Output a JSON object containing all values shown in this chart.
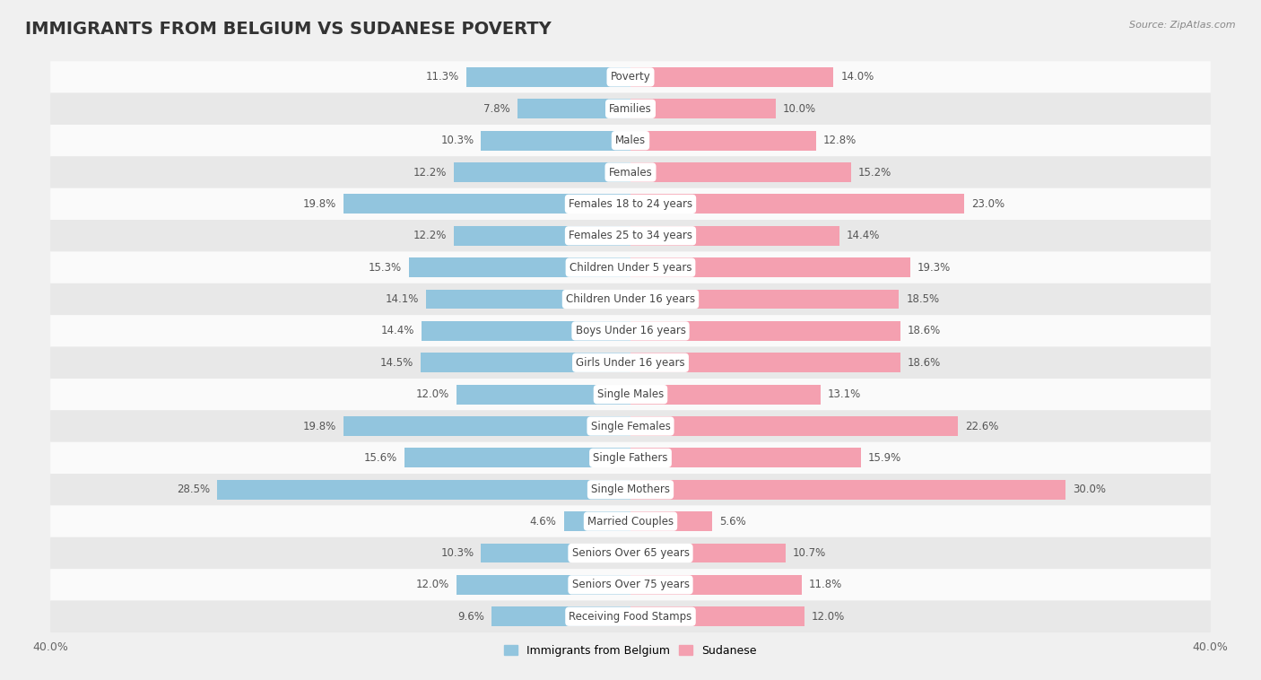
{
  "title": "IMMIGRANTS FROM BELGIUM VS SUDANESE POVERTY",
  "source": "Source: ZipAtlas.com",
  "categories": [
    "Poverty",
    "Families",
    "Males",
    "Females",
    "Females 18 to 24 years",
    "Females 25 to 34 years",
    "Children Under 5 years",
    "Children Under 16 years",
    "Boys Under 16 years",
    "Girls Under 16 years",
    "Single Males",
    "Single Females",
    "Single Fathers",
    "Single Mothers",
    "Married Couples",
    "Seniors Over 65 years",
    "Seniors Over 75 years",
    "Receiving Food Stamps"
  ],
  "belgium_values": [
    11.3,
    7.8,
    10.3,
    12.2,
    19.8,
    12.2,
    15.3,
    14.1,
    14.4,
    14.5,
    12.0,
    19.8,
    15.6,
    28.5,
    4.6,
    10.3,
    12.0,
    9.6
  ],
  "sudanese_values": [
    14.0,
    10.0,
    12.8,
    15.2,
    23.0,
    14.4,
    19.3,
    18.5,
    18.6,
    18.6,
    13.1,
    22.6,
    15.9,
    30.0,
    5.6,
    10.7,
    11.8,
    12.0
  ],
  "belgium_color": "#92c5de",
  "sudanese_color": "#f4a0b0",
  "background_color": "#f0f0f0",
  "row_color_light": "#fafafa",
  "row_color_dark": "#e8e8e8",
  "xlim": 40.0,
  "bar_height": 0.62,
  "legend_labels": [
    "Immigrants from Belgium",
    "Sudanese"
  ],
  "title_fontsize": 14,
  "label_fontsize": 8.5,
  "value_fontsize": 8.5,
  "axis_label_fontsize": 9
}
